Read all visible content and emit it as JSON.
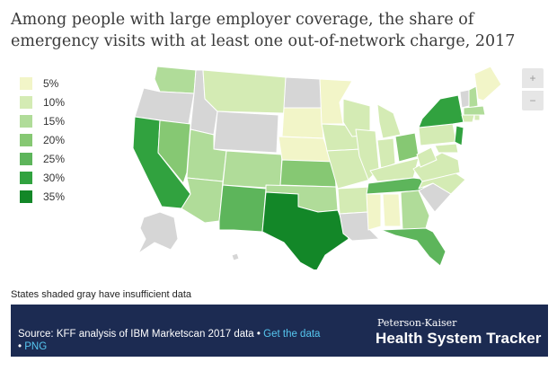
{
  "title": "Among people with large employer coverage, the share of emergency visits with at least one out-of-network charge, 2017",
  "legend": [
    {
      "label": "5%",
      "color": "#f2f5c8"
    },
    {
      "label": "10%",
      "color": "#d4ebb4"
    },
    {
      "label": "15%",
      "color": "#b0dc99"
    },
    {
      "label": "20%",
      "color": "#86c873"
    },
    {
      "label": "25%",
      "color": "#5db55b"
    },
    {
      "label": "30%",
      "color": "#31a23f"
    },
    {
      "label": "35%",
      "color": "#138728"
    }
  ],
  "no_data_color": "#d6d6d6",
  "zoom": {
    "in": "+",
    "out": "−"
  },
  "note": "States shaded gray have insufficient data",
  "footer": {
    "source": "Source: KFF analysis of IBM Marketscan 2017 data",
    "separator": "•",
    "get_data": "Get the data",
    "png": "PNG",
    "brand_small": "Peterson-Kaiser",
    "brand_big": "Health System Tracker"
  }
}
